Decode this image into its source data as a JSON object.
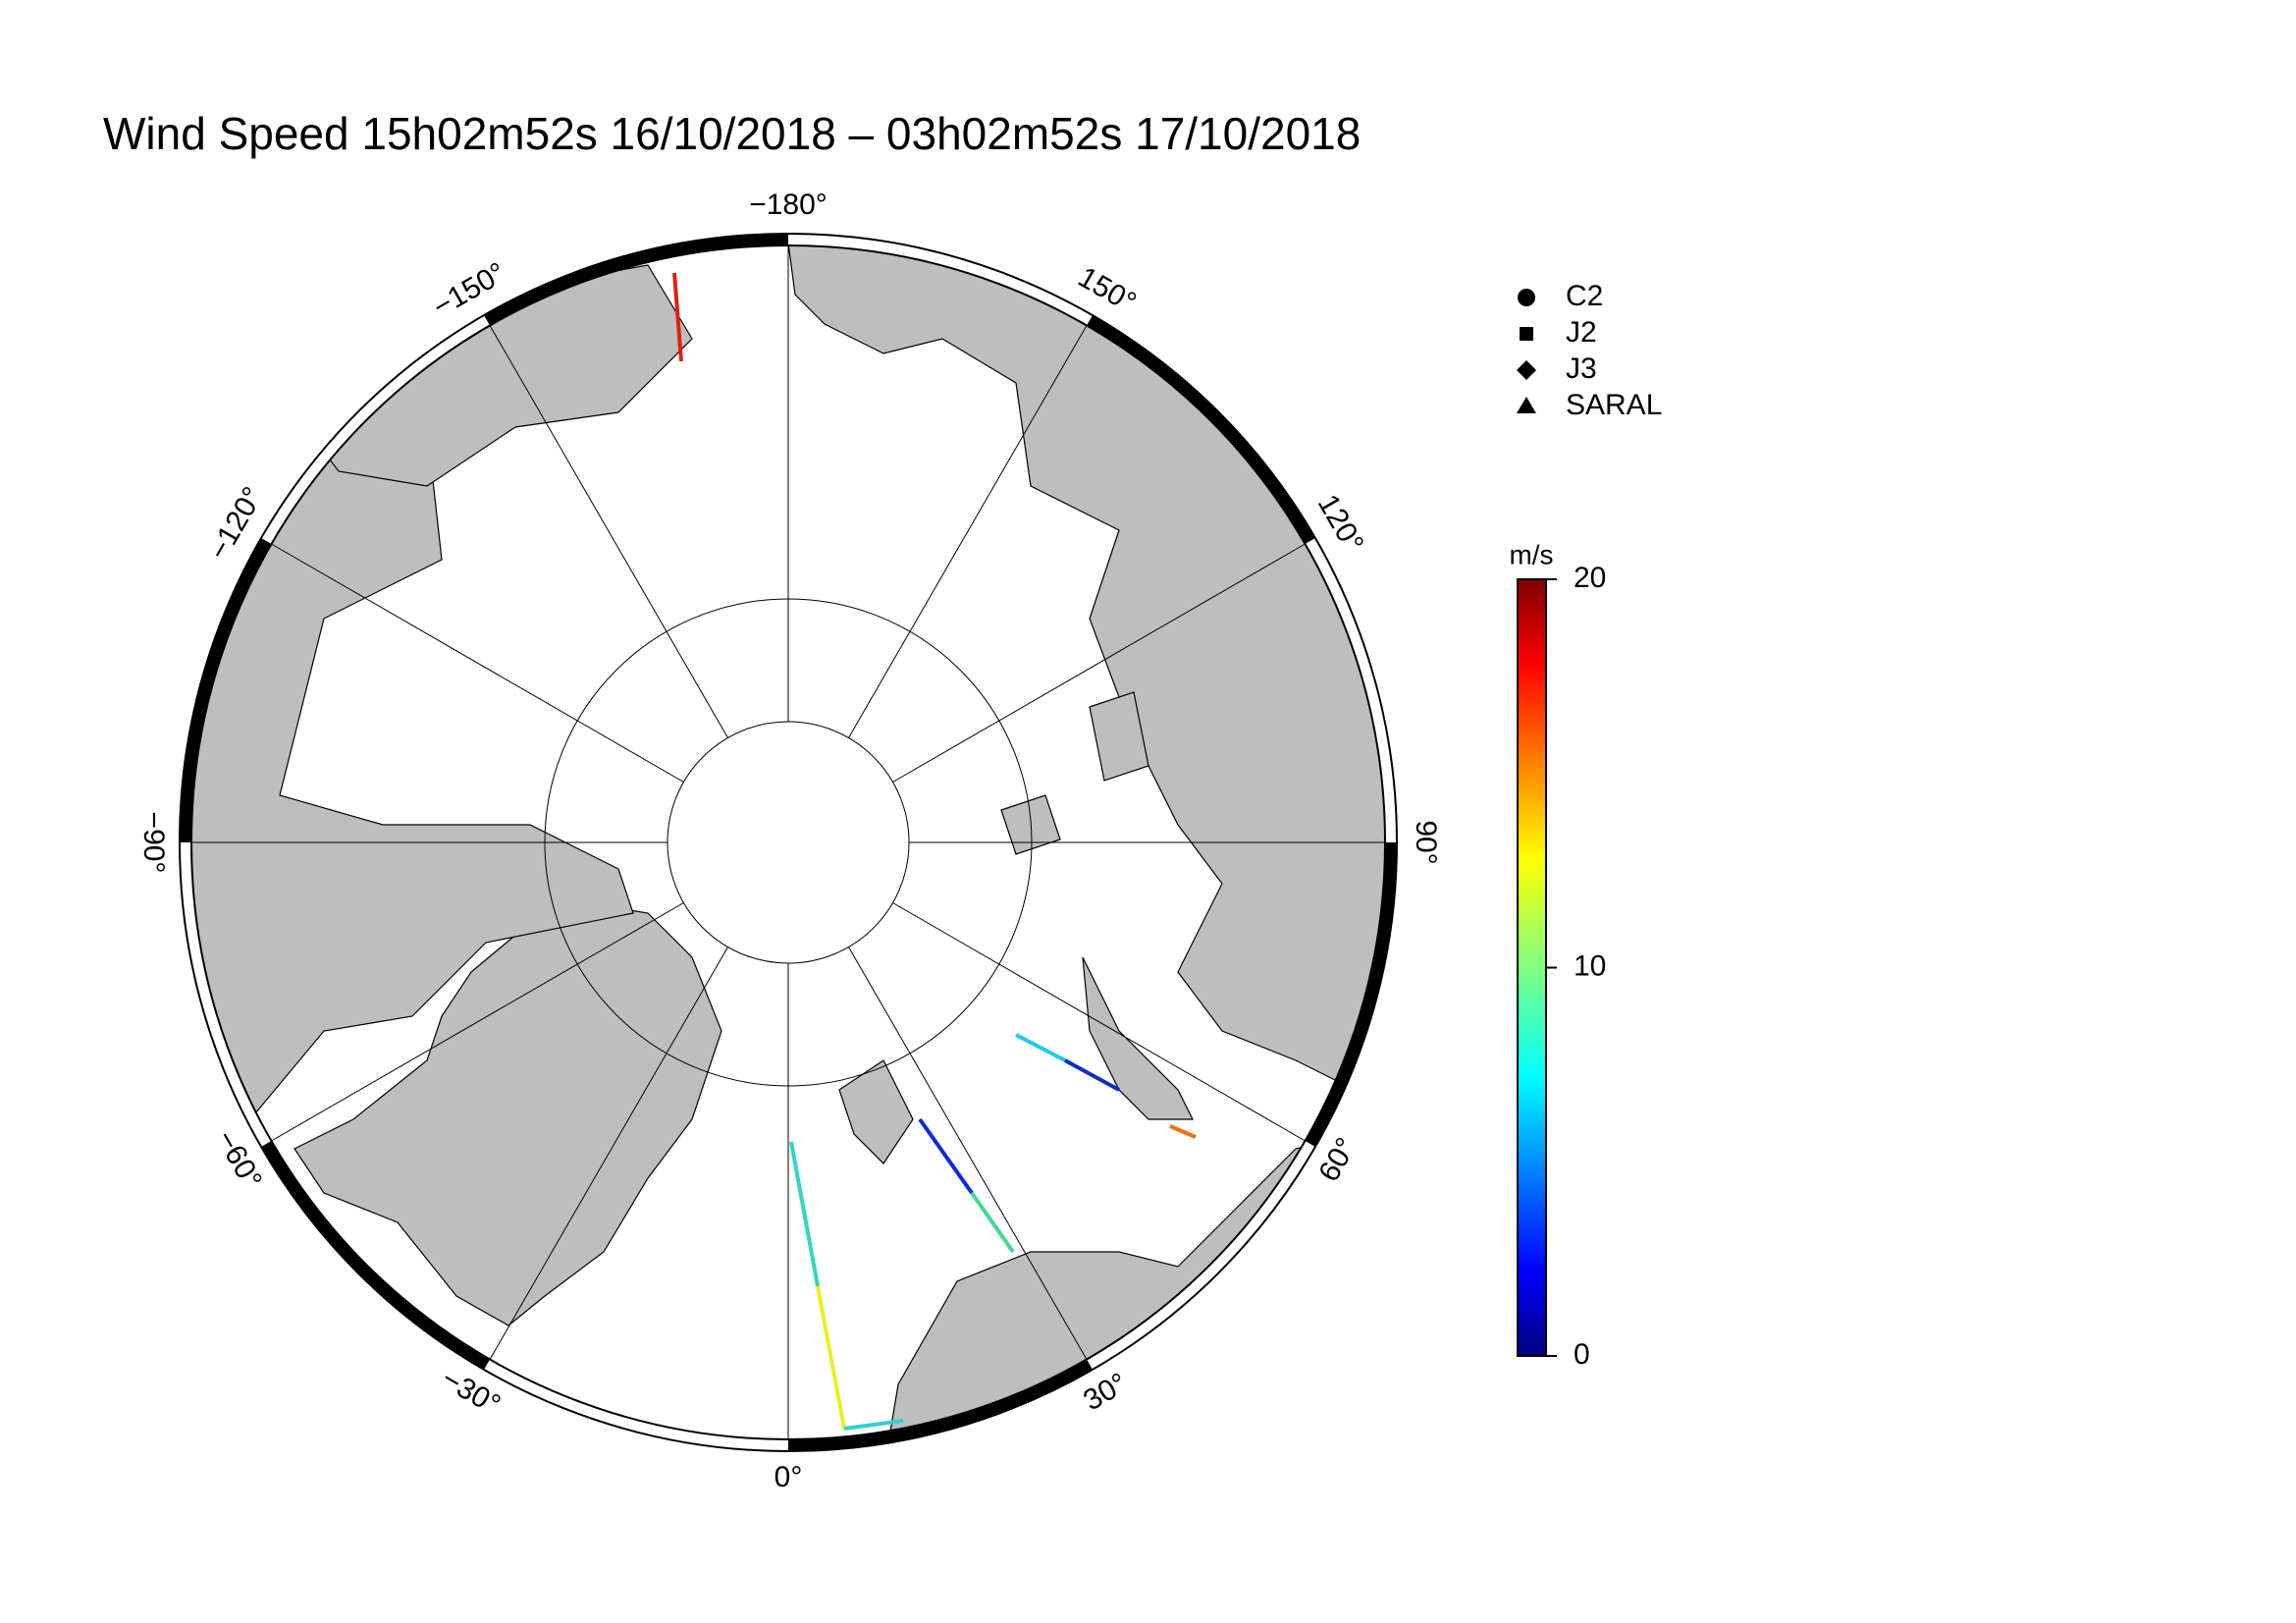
{
  "title": "Wind Speed 15h02m52s 16/10/2018 – 03h02m52s 17/10/2018",
  "map": {
    "longitude_ticks": [
      {
        "value": -180,
        "label": "−180°"
      },
      {
        "value": -150,
        "label": "−150°"
      },
      {
        "value": -120,
        "label": "−120°"
      },
      {
        "value": -90,
        "label": "−90°"
      },
      {
        "value": -60,
        "label": "−60°"
      },
      {
        "value": -30,
        "label": "−30°"
      },
      {
        "value": 0,
        "label": "0°"
      },
      {
        "value": 30,
        "label": "30°"
      },
      {
        "value": 60,
        "label": "60°"
      },
      {
        "value": 90,
        "label": "90°"
      },
      {
        "value": 120,
        "label": "120°"
      },
      {
        "value": 150,
        "label": "150°"
      }
    ]
  },
  "legend": {
    "entries": [
      "C2",
      "J2",
      "J3",
      "SARAL"
    ]
  },
  "colorbar": {
    "unit": "m/s",
    "limits": [
      0,
      20
    ],
    "ticks": [
      0,
      10,
      20
    ]
  }
}
